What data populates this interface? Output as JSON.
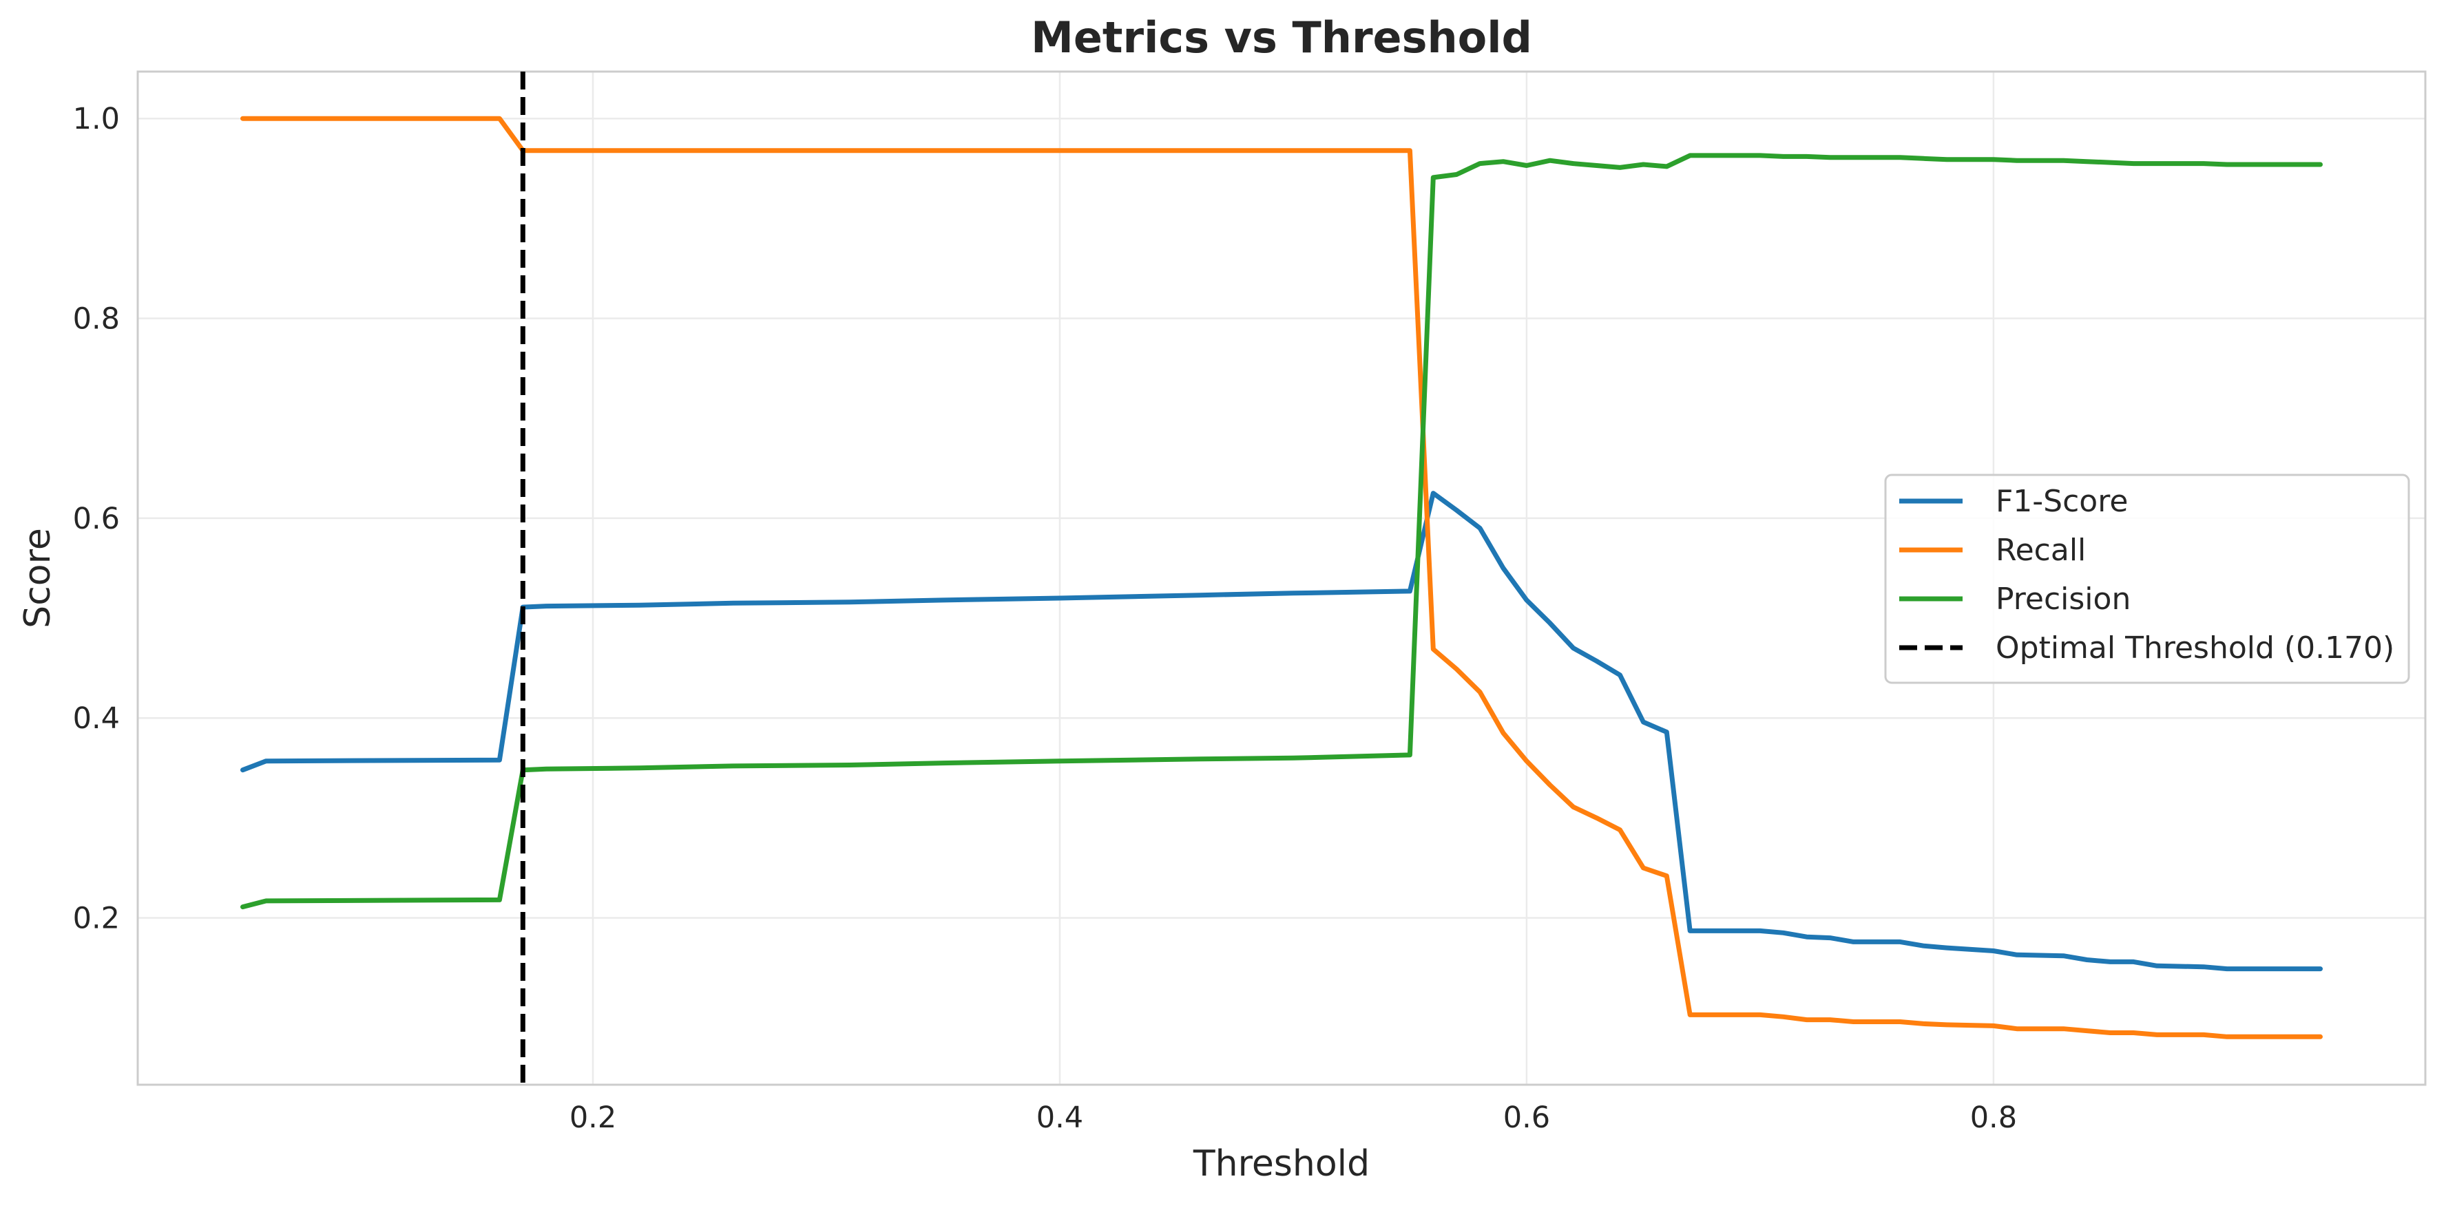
{
  "chart_data": {
    "type": "line",
    "title": "Metrics vs Threshold",
    "xlabel": "Threshold",
    "ylabel": "Score",
    "xlim": [
      0.005,
      0.985
    ],
    "ylim": [
      0.033,
      1.047
    ],
    "x_ticks": [
      0.2,
      0.4,
      0.6,
      0.8
    ],
    "x_tick_labels": [
      "0.2",
      "0.4",
      "0.6",
      "0.8"
    ],
    "y_ticks": [
      0.2,
      0.4,
      0.6,
      0.8,
      1.0
    ],
    "y_tick_labels": [
      "0.2",
      "0.4",
      "0.6",
      "0.8",
      "1.0"
    ],
    "grid": true,
    "legend_position": "center-right",
    "series": [
      {
        "name": "F1-Score",
        "color": "#1f77b4",
        "x": [
          0.05,
          0.06,
          0.16,
          0.17,
          0.18,
          0.22,
          0.26,
          0.31,
          0.35,
          0.4,
          0.46,
          0.5,
          0.55,
          0.56,
          0.57,
          0.58,
          0.59,
          0.6,
          0.61,
          0.62,
          0.63,
          0.64,
          0.65,
          0.66,
          0.67,
          0.7,
          0.71,
          0.72,
          0.73,
          0.74,
          0.76,
          0.77,
          0.78,
          0.8,
          0.81,
          0.83,
          0.84,
          0.85,
          0.86,
          0.87,
          0.89,
          0.9,
          0.94
        ],
        "y": [
          0.348,
          0.357,
          0.358,
          0.511,
          0.512,
          0.513,
          0.515,
          0.516,
          0.518,
          0.52,
          0.523,
          0.525,
          0.527,
          0.625,
          0.608,
          0.59,
          0.55,
          0.518,
          0.495,
          0.47,
          0.457,
          0.443,
          0.396,
          0.386,
          0.187,
          0.187,
          0.185,
          0.181,
          0.18,
          0.176,
          0.176,
          0.172,
          0.17,
          0.167,
          0.163,
          0.162,
          0.158,
          0.156,
          0.156,
          0.152,
          0.151,
          0.149,
          0.149
        ]
      },
      {
        "name": "Recall",
        "color": "#ff7f0e",
        "x": [
          0.05,
          0.16,
          0.17,
          0.55,
          0.56,
          0.57,
          0.58,
          0.59,
          0.6,
          0.61,
          0.62,
          0.63,
          0.64,
          0.65,
          0.66,
          0.67,
          0.7,
          0.71,
          0.72,
          0.73,
          0.74,
          0.76,
          0.77,
          0.78,
          0.8,
          0.81,
          0.83,
          0.84,
          0.85,
          0.86,
          0.87,
          0.89,
          0.9,
          0.94
        ],
        "y": [
          1.0,
          1.0,
          0.968,
          0.968,
          0.469,
          0.449,
          0.426,
          0.385,
          0.357,
          0.333,
          0.311,
          0.3,
          0.288,
          0.25,
          0.242,
          0.103,
          0.103,
          0.101,
          0.098,
          0.098,
          0.096,
          0.096,
          0.094,
          0.093,
          0.092,
          0.089,
          0.089,
          0.087,
          0.085,
          0.085,
          0.083,
          0.083,
          0.081,
          0.081
        ]
      },
      {
        "name": "Precision",
        "color": "#2ca02c",
        "x": [
          0.05,
          0.06,
          0.16,
          0.17,
          0.18,
          0.22,
          0.26,
          0.31,
          0.35,
          0.4,
          0.46,
          0.5,
          0.55,
          0.56,
          0.57,
          0.58,
          0.59,
          0.6,
          0.61,
          0.62,
          0.63,
          0.64,
          0.65,
          0.66,
          0.67,
          0.7,
          0.71,
          0.72,
          0.73,
          0.74,
          0.76,
          0.77,
          0.78,
          0.8,
          0.81,
          0.83,
          0.84,
          0.85,
          0.86,
          0.87,
          0.89,
          0.9,
          0.94
        ],
        "y": [
          0.211,
          0.217,
          0.218,
          0.348,
          0.349,
          0.35,
          0.352,
          0.353,
          0.355,
          0.357,
          0.359,
          0.36,
          0.363,
          0.941,
          0.944,
          0.955,
          0.957,
          0.953,
          0.958,
          0.955,
          0.953,
          0.951,
          0.954,
          0.952,
          0.963,
          0.963,
          0.962,
          0.962,
          0.961,
          0.961,
          0.961,
          0.96,
          0.959,
          0.959,
          0.958,
          0.958,
          0.957,
          0.956,
          0.955,
          0.955,
          0.955,
          0.954,
          0.954
        ]
      }
    ],
    "vertical_line": {
      "name": "Optimal Threshold (0.170)",
      "x": 0.17,
      "color": "#000000",
      "style": "dashed"
    }
  }
}
